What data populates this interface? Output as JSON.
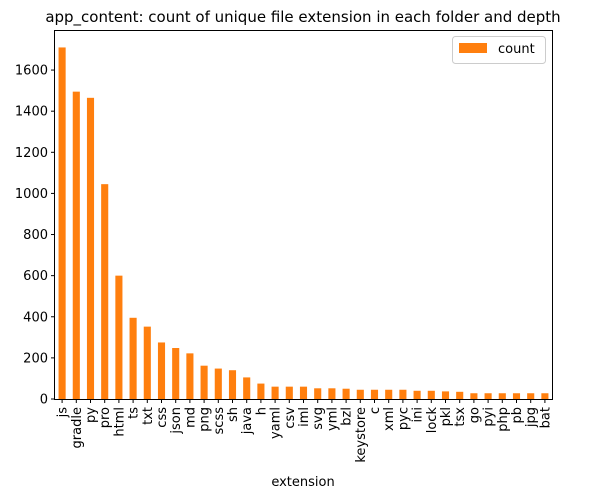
{
  "chart_data": {
    "type": "bar",
    "title": "app_content: count of unique file extension in each folder and depth",
    "xlabel": "extension",
    "ylabel": "",
    "ylim": [
      0,
      1790
    ],
    "yticks": [
      0,
      200,
      400,
      600,
      800,
      1000,
      1200,
      1400,
      1600
    ],
    "grid": false,
    "legend_position": "top-right",
    "bar_color": "#ff7f0e",
    "categories": [
      "js",
      "gradle",
      "py",
      "pro",
      "html",
      "ts",
      "txt",
      "css",
      "json",
      "md",
      "png",
      "scss",
      "sh",
      "java",
      "h",
      "yaml",
      "csv",
      "iml",
      "svg",
      "yml",
      "bzl",
      "keystore",
      "c",
      "xml",
      "pyc",
      "ini",
      "lock",
      "pkl",
      "tsx",
      "go",
      "pyi",
      "php",
      "pb",
      "jpg",
      "bat"
    ],
    "series": [
      {
        "name": "count",
        "values": [
          1710,
          1495,
          1465,
          1045,
          600,
          395,
          352,
          275,
          248,
          222,
          162,
          148,
          140,
          105,
          75,
          60,
          60,
          60,
          52,
          52,
          50,
          45,
          45,
          45,
          45,
          40,
          40,
          37,
          35,
          28,
          28,
          28,
          28,
          28,
          28
        ]
      }
    ]
  }
}
